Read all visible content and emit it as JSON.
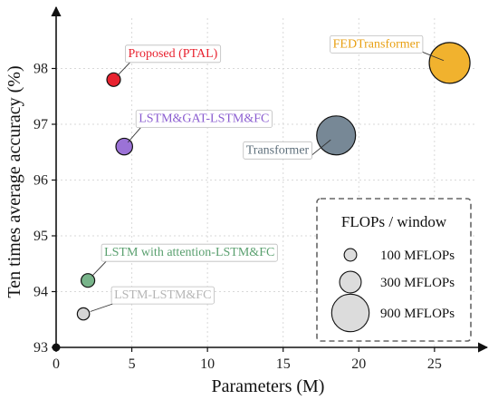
{
  "chart_data": {
    "type": "scatter",
    "xlabel": "Parameters (M)",
    "ylabel": "Ten times average accuracy (%)",
    "xlim": [
      0,
      28
    ],
    "ylim": [
      93,
      99
    ],
    "xticks": [
      0,
      5,
      10,
      15,
      20,
      25
    ],
    "yticks": [
      93,
      94,
      95,
      96,
      97,
      98
    ],
    "grid": true,
    "points": [
      {
        "label": "Proposed (PTAL)",
        "x": 3.8,
        "y": 97.8,
        "flops": 100,
        "color": "#e8222f",
        "text_color": "#e8222f"
      },
      {
        "label": "LSTM&GAT-LSTM&FC",
        "x": 4.5,
        "y": 96.6,
        "flops": 150,
        "color": "#9b72d6",
        "text_color": "#8a5cd0"
      },
      {
        "label": "LSTM with attention-LSTM&FC",
        "x": 2.1,
        "y": 94.2,
        "flops": 100,
        "color": "#78b48a",
        "text_color": "#5aa06f"
      },
      {
        "label": "LSTM-LSTM&FC",
        "x": 1.8,
        "y": 93.6,
        "flops": 80,
        "color": "#d6d6d6",
        "text_color": "#b5b5b5"
      },
      {
        "label": "Transformer",
        "x": 18.5,
        "y": 96.8,
        "flops": 820,
        "color": "#778896",
        "text_color": "#5e6f7b"
      },
      {
        "label": "FEDTransformer",
        "x": 26.0,
        "y": 98.1,
        "flops": 900,
        "color": "#f1b22e",
        "text_color": "#e89f10"
      }
    ],
    "legend": {
      "title": "FLOPs / window",
      "placement": "bottom-right",
      "entries": [
        {
          "label": "100 MFLOPs",
          "flops": 100
        },
        {
          "label": "300 MFLOPs",
          "flops": 300
        },
        {
          "label": "900 MFLOPs",
          "flops": 900
        }
      ]
    }
  }
}
